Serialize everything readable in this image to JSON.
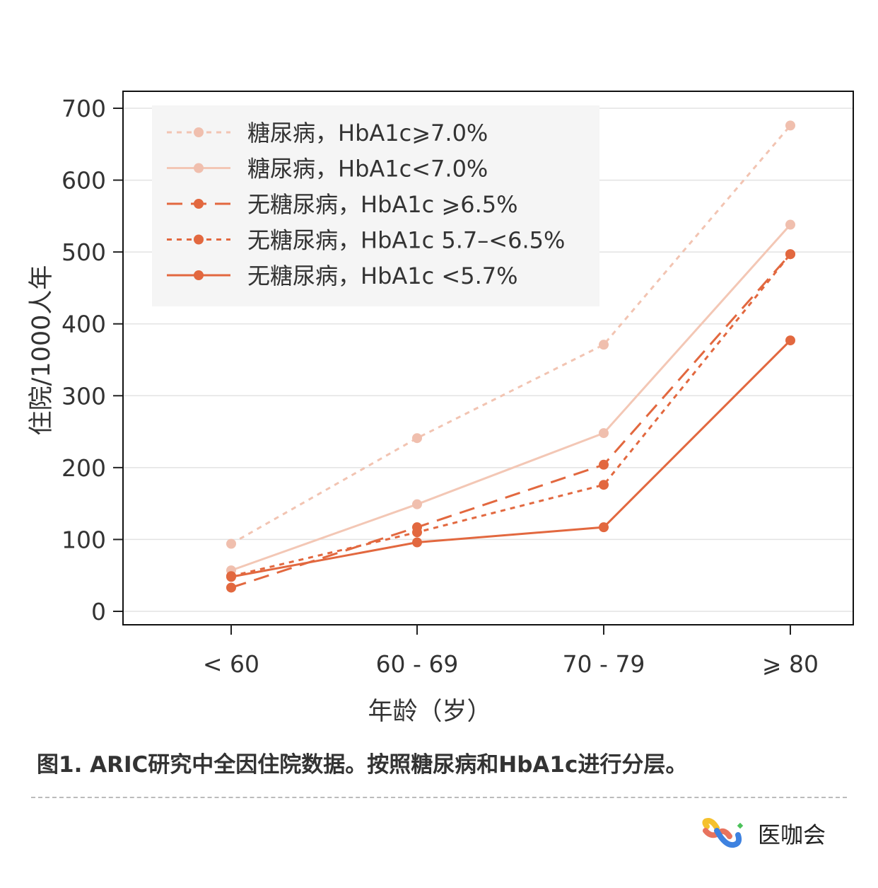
{
  "chart_data": {
    "type": "line",
    "title": "",
    "xlabel": "年龄（岁）",
    "ylabel": "住院/1000人年",
    "categories": [
      "< 60",
      "60 - 69",
      "70 - 79",
      "⩾ 80"
    ],
    "ylim": [
      0,
      700
    ],
    "yticks": [
      0,
      100,
      200,
      300,
      400,
      500,
      600,
      700
    ],
    "grid": true,
    "legend_position": "top-left",
    "series": [
      {
        "name": "糖尿病，HbA1c⩾7.0%",
        "values": [
          94,
          241,
          371,
          676
        ],
        "color": "#f2c4b2",
        "style": "dotted"
      },
      {
        "name": "糖尿病，HbA1c<7.0%",
        "values": [
          57,
          149,
          248,
          538
        ],
        "color": "#f2c4b2",
        "style": "solid"
      },
      {
        "name": "无糖尿病，HbA1c ⩾6.5%",
        "values": [
          33,
          117,
          204,
          497
        ],
        "color": "#e2683f",
        "style": "dashed"
      },
      {
        "name": "无糖尿病，HbA1c 5.7–<6.5%",
        "values": [
          49,
          110,
          176,
          497
        ],
        "color": "#e2683f",
        "style": "dotted"
      },
      {
        "name": "无糖尿病，HbA1c <5.7%",
        "values": [
          48,
          96,
          117,
          377
        ],
        "color": "#e2683f",
        "style": "solid"
      }
    ]
  },
  "caption": "图1. ARIC研究中全因住院数据。按照糖尿病和HbA1c进行分层。",
  "brand": {
    "name": "医咖会"
  }
}
